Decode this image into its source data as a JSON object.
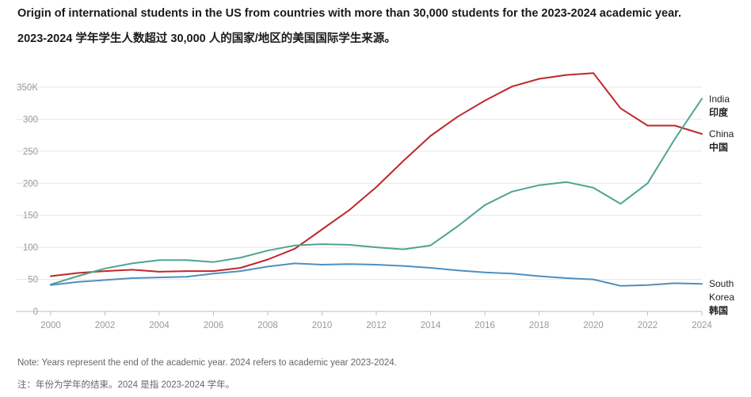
{
  "title_en": "Origin of international students in the US from countries with more than 30,000 students for the 2023-2024 academic year.",
  "title_zh": "2023-2024 学年学生人数超过 30,000 人的国家/地区的美国国际学生来源。",
  "note_en": "Note: Years represent the end of the academic year. 2024 refers to academic year 2023-2024.",
  "note_zh": "注：年份为学年的结束。2024 是指 2023-2024 学年。",
  "colors": {
    "China": "#c0272d",
    "India": "#4fa393",
    "South Korea": "#4f8fbf",
    "grid": "#e6e6e6",
    "axis": "#999999"
  },
  "chart_data": {
    "type": "line",
    "title": "Origin of international students in the US from countries with more than 30,000 students for the 2023-2024 academic year.",
    "xlabel": "",
    "ylabel": "",
    "x": [
      2000,
      2001,
      2002,
      2003,
      2004,
      2005,
      2006,
      2007,
      2008,
      2009,
      2010,
      2011,
      2012,
      2013,
      2014,
      2015,
      2016,
      2017,
      2018,
      2019,
      2020,
      2021,
      2022,
      2023,
      2024
    ],
    "xlim": [
      2000,
      2024
    ],
    "ylim": [
      0,
      350
    ],
    "x_ticks": [
      "2000",
      "2002",
      "2004",
      "2006",
      "2008",
      "2010",
      "2012",
      "2014",
      "2016",
      "2018",
      "2020",
      "2022",
      "2024"
    ],
    "y_ticks": [
      {
        "value": 0,
        "label": "0"
      },
      {
        "value": 50,
        "label": "50"
      },
      {
        "value": 100,
        "label": "100"
      },
      {
        "value": 150,
        "label": "150"
      },
      {
        "value": 200,
        "label": "200"
      },
      {
        "value": 250,
        "label": "250"
      },
      {
        "value": 300,
        "label": "300"
      },
      {
        "value": 350,
        "label": "350K"
      }
    ],
    "grid": "horizontal",
    "series": [
      {
        "name": "China",
        "label_lines": [
          "China",
          "中国"
        ],
        "values": [
          55,
          60,
          63,
          65,
          62,
          63,
          63,
          68,
          81,
          98,
          128,
          158,
          194,
          235,
          274,
          304,
          329,
          351,
          363,
          369,
          372,
          317,
          290,
          290,
          277
        ]
      },
      {
        "name": "India",
        "label_lines": [
          "India",
          "印度"
        ],
        "values": [
          42,
          55,
          67,
          75,
          80,
          80,
          77,
          84,
          95,
          103,
          105,
          104,
          100,
          97,
          103,
          133,
          166,
          187,
          197,
          202,
          193,
          168,
          200,
          269,
          332
        ]
      },
      {
        "name": "South Korea",
        "label_lines": [
          "South",
          "Korea",
          "韩国"
        ],
        "values": [
          41,
          46,
          49,
          52,
          53,
          54,
          59,
          63,
          70,
          75,
          73,
          74,
          73,
          71,
          68,
          64,
          61,
          59,
          55,
          52,
          50,
          40,
          41,
          44,
          43
        ]
      }
    ]
  }
}
